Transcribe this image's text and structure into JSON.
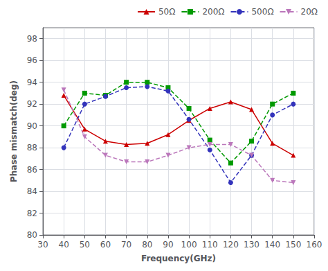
{
  "chart_data": {
    "type": "line",
    "xlabel": "Frequency(GHz)",
    "ylabel": "Phase mismatch(deg)",
    "x": [
      40,
      50,
      60,
      70,
      80,
      90,
      100,
      110,
      120,
      130,
      140,
      150
    ],
    "series": [
      {
        "name": "50Ω",
        "color": "#cc0000",
        "marker": "triangle-up",
        "line_style": "solid",
        "values": [
          92.8,
          89.7,
          88.6,
          88.3,
          88.4,
          89.2,
          90.5,
          91.6,
          92.2,
          91.5,
          88.4,
          87.3
        ]
      },
      {
        "name": "200Ω",
        "color": "#009900",
        "marker": "square",
        "line_style": "dashed",
        "values": [
          90.0,
          93.0,
          92.8,
          94.0,
          94.0,
          93.5,
          91.6,
          88.7,
          86.6,
          88.6,
          92.0,
          93.0
        ]
      },
      {
        "name": "500Ω",
        "color": "#3333bb",
        "marker": "circle",
        "line_style": "dashed",
        "values": [
          88.0,
          92.0,
          92.7,
          93.5,
          93.6,
          93.2,
          90.6,
          87.8,
          84.8,
          87.3,
          91.0,
          92.0
        ]
      },
      {
        "name": "20Ω",
        "color": "#bb77bb",
        "marker": "triangle-down",
        "line_style": "dashed",
        "values": [
          93.3,
          89.0,
          87.3,
          86.7,
          86.7,
          87.3,
          88.0,
          88.3,
          88.3,
          87.3,
          85.0,
          84.8
        ]
      }
    ],
    "xlim": [
      30,
      160
    ],
    "ylim": [
      80,
      99
    ],
    "xticks": [
      30,
      40,
      50,
      60,
      70,
      80,
      90,
      100,
      110,
      120,
      130,
      140,
      150,
      160
    ],
    "yticks": [
      80,
      82,
      84,
      86,
      88,
      90,
      92,
      94,
      96,
      98
    ],
    "grid": true,
    "legend": "upper right"
  }
}
